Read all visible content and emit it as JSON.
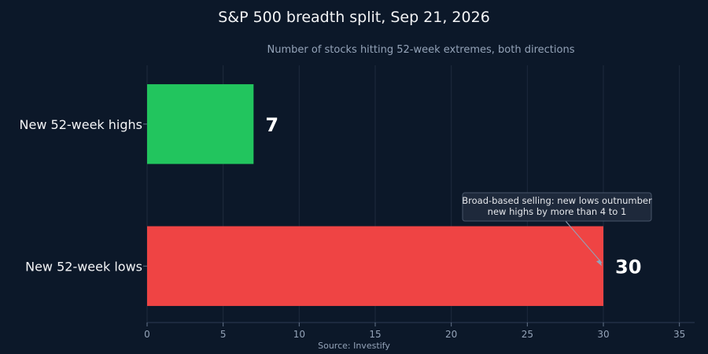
{
  "chart_data": {
    "type": "bar",
    "orientation": "horizontal",
    "title": "S&P 500 breadth split, Sep 21, 2026",
    "subtitle": "Number of stocks hitting 52-week extremes, both directions",
    "categories": [
      "New 52-week highs",
      "New 52-week lows"
    ],
    "values": [
      7,
      30
    ],
    "colors": [
      "#22c55e",
      "#ef4444"
    ],
    "xlim": [
      0,
      36
    ],
    "xticks": [
      0,
      5,
      10,
      15,
      20,
      25,
      30,
      35
    ],
    "grid": true,
    "annotation": {
      "lines": [
        "Broad-based selling: new lows outnumber",
        "new highs by more than 4 to 1"
      ],
      "target_category": "New 52-week lows",
      "target_value": 30
    },
    "source": "Source: Investify"
  }
}
